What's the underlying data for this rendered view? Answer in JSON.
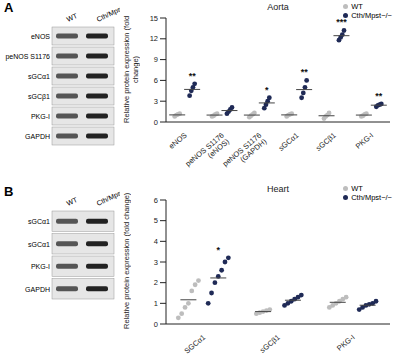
{
  "blots": [
    {
      "panel": "A",
      "columns": [
        "WT",
        "Cth/Mpst−/−"
      ],
      "rows": [
        "eNOS",
        "peNOS S1176",
        "sGCα1",
        "sGCβ1",
        "PKG-I",
        "GAPDH"
      ]
    },
    {
      "panel": "B",
      "columns": [
        "WT",
        "Cth/Mpst−/−"
      ],
      "rows": [
        "sGCα1",
        "sGCα1",
        "PKG-I",
        "GAPDH"
      ]
    }
  ],
  "chart_data": [
    {
      "type": "scatter",
      "title": "Aorta",
      "y_label": "Relative protein expression (fold change)",
      "categories": [
        "eNOS",
        "peNOS S1176 (eNOS)",
        "peNOS S1176 (GAPDH)",
        "sGCα1",
        "sGCβ1",
        "PKG-I"
      ],
      "ylim": [
        0,
        15
      ],
      "yticks": [
        0,
        3,
        6,
        9,
        12,
        15
      ],
      "legend": "upper right",
      "marker": "circle",
      "series": [
        {
          "name": "WT",
          "color": "#bdbdbd",
          "values": [
            [
              0.8,
              1.0,
              1.1,
              1.2
            ],
            [
              0.8,
              0.9,
              1.1,
              1.2
            ],
            [
              0.7,
              0.9,
              1.1,
              1.3
            ],
            [
              0.8,
              1.0,
              1.1,
              1.2
            ],
            [
              0.5,
              0.8,
              1.0,
              1.3
            ],
            [
              0.8,
              0.9,
              1.1,
              1.2
            ]
          ]
        },
        {
          "name": "Cth/Mpst−/−",
          "color": "#1f2a56",
          "values": [
            [
              3.8,
              4.5,
              5.0,
              5.5
            ],
            [
              1.2,
              1.5,
              1.8,
              2.1
            ],
            [
              2.0,
              2.5,
              3.0,
              3.5
            ],
            [
              3.5,
              4.2,
              5.0,
              6.0
            ],
            [
              11.8,
              12.2,
              12.6,
              13.2
            ],
            [
              2.2,
              2.4,
              2.5,
              2.6
            ]
          ]
        }
      ],
      "annotations": [
        "**",
        null,
        "*",
        "**",
        "***",
        "**"
      ]
    },
    {
      "type": "scatter",
      "title": "Heart",
      "y_label": "Relative protein expression (fold change)",
      "categories": [
        "SGCα1",
        "sGCβ1",
        "PKG-I"
      ],
      "ylim": [
        0,
        6
      ],
      "yticks": [
        0,
        1,
        2,
        3,
        4,
        5,
        6
      ],
      "legend": "upper right",
      "marker": "circle",
      "series": [
        {
          "name": "WT",
          "color": "#bdbdbd",
          "values": [
            [
              0.3,
              0.5,
              0.8,
              1.0,
              1.6,
              1.9,
              2.1
            ],
            [
              0.5,
              0.55,
              0.6,
              0.65,
              0.7
            ],
            [
              0.8,
              0.9,
              1.0,
              1.1,
              1.2,
              1.3
            ]
          ]
        },
        {
          "name": "Cth/Mpst−/−",
          "color": "#1f2a56",
          "values": [
            [
              1.0,
              1.5,
              2.0,
              2.3,
              2.6,
              3.0,
              3.2
            ],
            [
              0.9,
              1.0,
              1.1,
              1.2,
              1.3,
              1.4
            ],
            [
              0.7,
              0.8,
              0.9,
              0.95,
              1.0,
              1.1
            ]
          ]
        }
      ],
      "annotations": [
        "*",
        null,
        null
      ]
    }
  ]
}
